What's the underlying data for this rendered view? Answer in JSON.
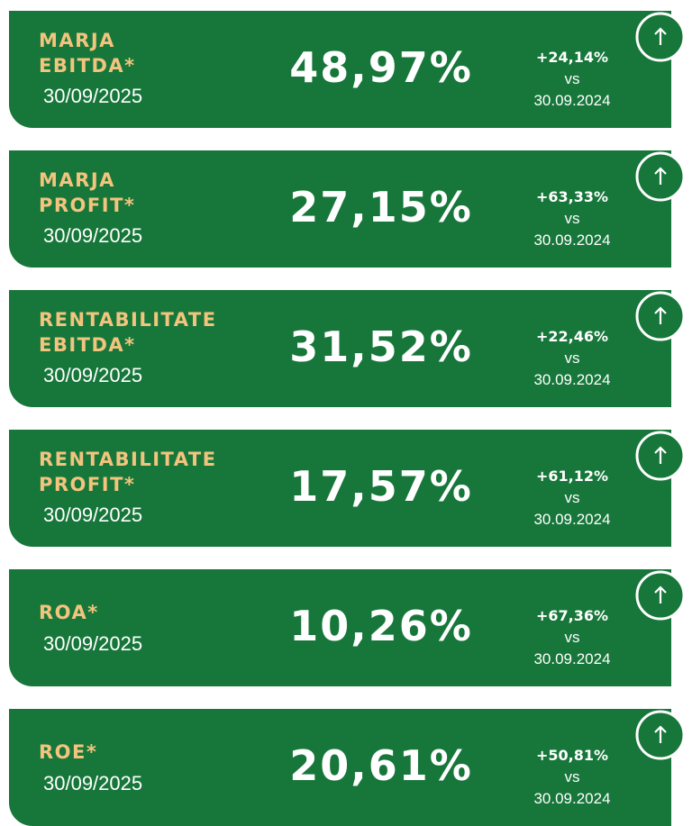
{
  "cards": [
    {
      "title": [
        "MARJA",
        "EBITDA*"
      ],
      "date": "30/09/2025",
      "value": "48,97%",
      "change": "+24,14%",
      "vs": "vs",
      "compare_date": "30.09.2024"
    },
    {
      "title": [
        "MARJA",
        "PROFIT*"
      ],
      "date": "30/09/2025",
      "value": "27,15%",
      "change": "+63,33%",
      "vs": "vs",
      "compare_date": "30.09.2024"
    },
    {
      "title": [
        "RENTABILITATE",
        "EBITDA*"
      ],
      "date": "30/09/2025",
      "value": "31,52%",
      "change": "+22,46%",
      "vs": "vs",
      "compare_date": "30.09.2024"
    },
    {
      "title": [
        "RENTABILITATE",
        "PROFIT*"
      ],
      "date": "30/09/2025",
      "value": "17,57%",
      "change": "+61,12%",
      "vs": "vs",
      "compare_date": "30.09.2024"
    },
    {
      "title": [
        "ROA*"
      ],
      "date": "30/09/2025",
      "value": "10,26%",
      "change": "+67,36%",
      "vs": "vs",
      "compare_date": "30.09.2024"
    },
    {
      "title": [
        "ROE*"
      ],
      "date": "30/09/2025",
      "value": "20,61%",
      "change": "+50,81%",
      "vs": "vs",
      "compare_date": "30.09.2024"
    }
  ]
}
